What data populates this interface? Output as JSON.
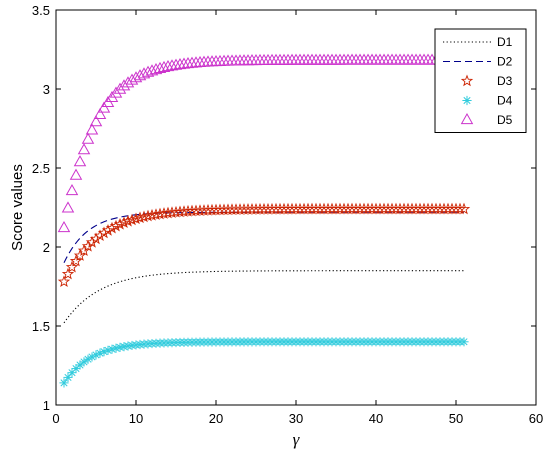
{
  "chart_data": {
    "type": "line",
    "xlabel": "γ",
    "ylabel": "Score values",
    "xlim": [
      0,
      60
    ],
    "ylim": [
      1,
      3.5
    ],
    "xticks": [
      "0",
      "10",
      "20",
      "30",
      "40",
      "50",
      "60"
    ],
    "yticks": [
      "1",
      "1.5",
      "2",
      "2.5",
      "3",
      "3.5"
    ],
    "grid": false,
    "legend_position": "top-right",
    "series": [
      {
        "name": "D1",
        "color": "#000000",
        "style": "dotted",
        "marker": "none",
        "start": 1.52,
        "end": 1.85,
        "tau": 4.5
      },
      {
        "name": "D2",
        "color": "#00008b",
        "style": "dashed",
        "marker": "none",
        "start": 1.9,
        "end": 2.22,
        "tau": 3.0
      },
      {
        "name": "D3",
        "color": "#cc2200",
        "style": "none",
        "marker": "star",
        "start": 1.78,
        "end": 2.24,
        "tau": 4.5
      },
      {
        "name": "D4",
        "color": "#33ccdd",
        "style": "none",
        "marker": "asterisk",
        "start": 1.14,
        "end": 1.4,
        "tau": 3.5
      },
      {
        "name": "D5",
        "color": "#cc33cc",
        "style": "none",
        "marker": "triangle",
        "start": 2.12,
        "end": 3.18,
        "tau": 4.0
      }
    ],
    "x_range": [
      1,
      51
    ]
  }
}
